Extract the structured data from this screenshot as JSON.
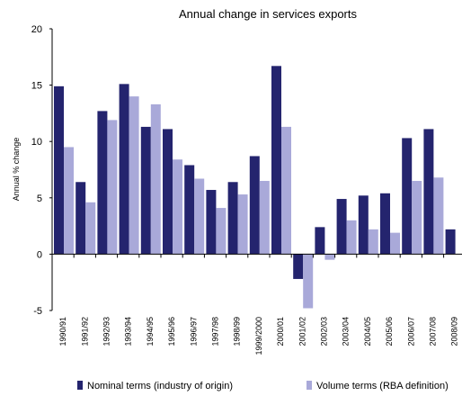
{
  "chart_data": {
    "type": "bar",
    "title": "Annual change in services exports",
    "xlabel": "",
    "ylabel": "Annual % change",
    "ylim": [
      -5,
      20
    ],
    "yticks": [
      -5,
      0,
      5,
      10,
      15,
      20
    ],
    "grid": false,
    "legend_position": "bottom",
    "categories": [
      "1990/91",
      "1991/92",
      "1992/93",
      "1993/94",
      "1994/95",
      "1995/96",
      "1996/97",
      "1997/98",
      "1998/99",
      "1999/2000",
      "2000/01",
      "2001/02",
      "2002/03",
      "2003/04",
      "2004/05",
      "2005/06",
      "2006/07",
      "2007/08",
      "2008/09"
    ],
    "series": [
      {
        "name": "Nominal terms (industry of origin)",
        "color": "#24246e",
        "values": [
          14.9,
          6.4,
          12.7,
          15.1,
          11.3,
          11.1,
          7.9,
          5.7,
          6.4,
          8.7,
          16.7,
          -2.2,
          2.4,
          4.9,
          5.2,
          5.4,
          10.3,
          11.1,
          2.2
        ]
      },
      {
        "name": "Volume terms (RBA definition)",
        "color": "#a9a9d9",
        "values": [
          9.5,
          4.6,
          11.9,
          14.0,
          13.3,
          8.4,
          6.7,
          4.1,
          5.3,
          6.5,
          11.3,
          -4.8,
          -0.5,
          3.0,
          2.2,
          1.9,
          6.5,
          6.8,
          null
        ]
      }
    ]
  }
}
